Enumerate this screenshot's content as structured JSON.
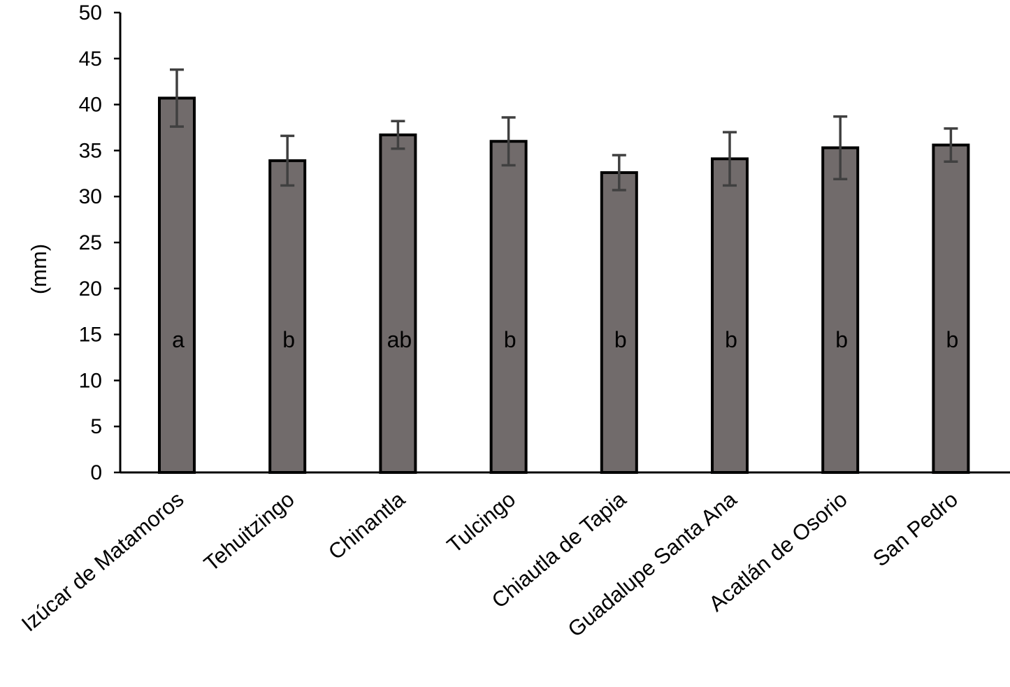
{
  "chart_data": {
    "type": "bar",
    "title": "",
    "xlabel": "",
    "ylabel": "(mm)",
    "ylim": [
      0,
      50
    ],
    "yticks": [
      0,
      5,
      10,
      15,
      20,
      25,
      30,
      35,
      40,
      45,
      50
    ],
    "grid": false,
    "legend": "none",
    "categories": [
      "Izúcar de Matamoros",
      "Tehuitzingo",
      "Chinantla",
      "Tulcingo",
      "Chiautla de Tapia",
      "Guadalupe  Santa Ana",
      "Acatlán de Osorio",
      "San Pedro"
    ],
    "values": [
      40.7,
      33.9,
      36.7,
      36.0,
      32.6,
      34.1,
      35.3,
      35.6
    ],
    "errors": [
      3.1,
      2.7,
      1.5,
      2.6,
      1.9,
      2.9,
      3.4,
      1.8
    ],
    "group_letters": [
      "a",
      "b",
      "ab",
      "b",
      "b",
      "b",
      "b",
      "b"
    ],
    "colors": {
      "bar_fill": "#716b6b",
      "bar_stroke": "#000000",
      "error_bar": "#404040",
      "axis": "#000000"
    }
  }
}
